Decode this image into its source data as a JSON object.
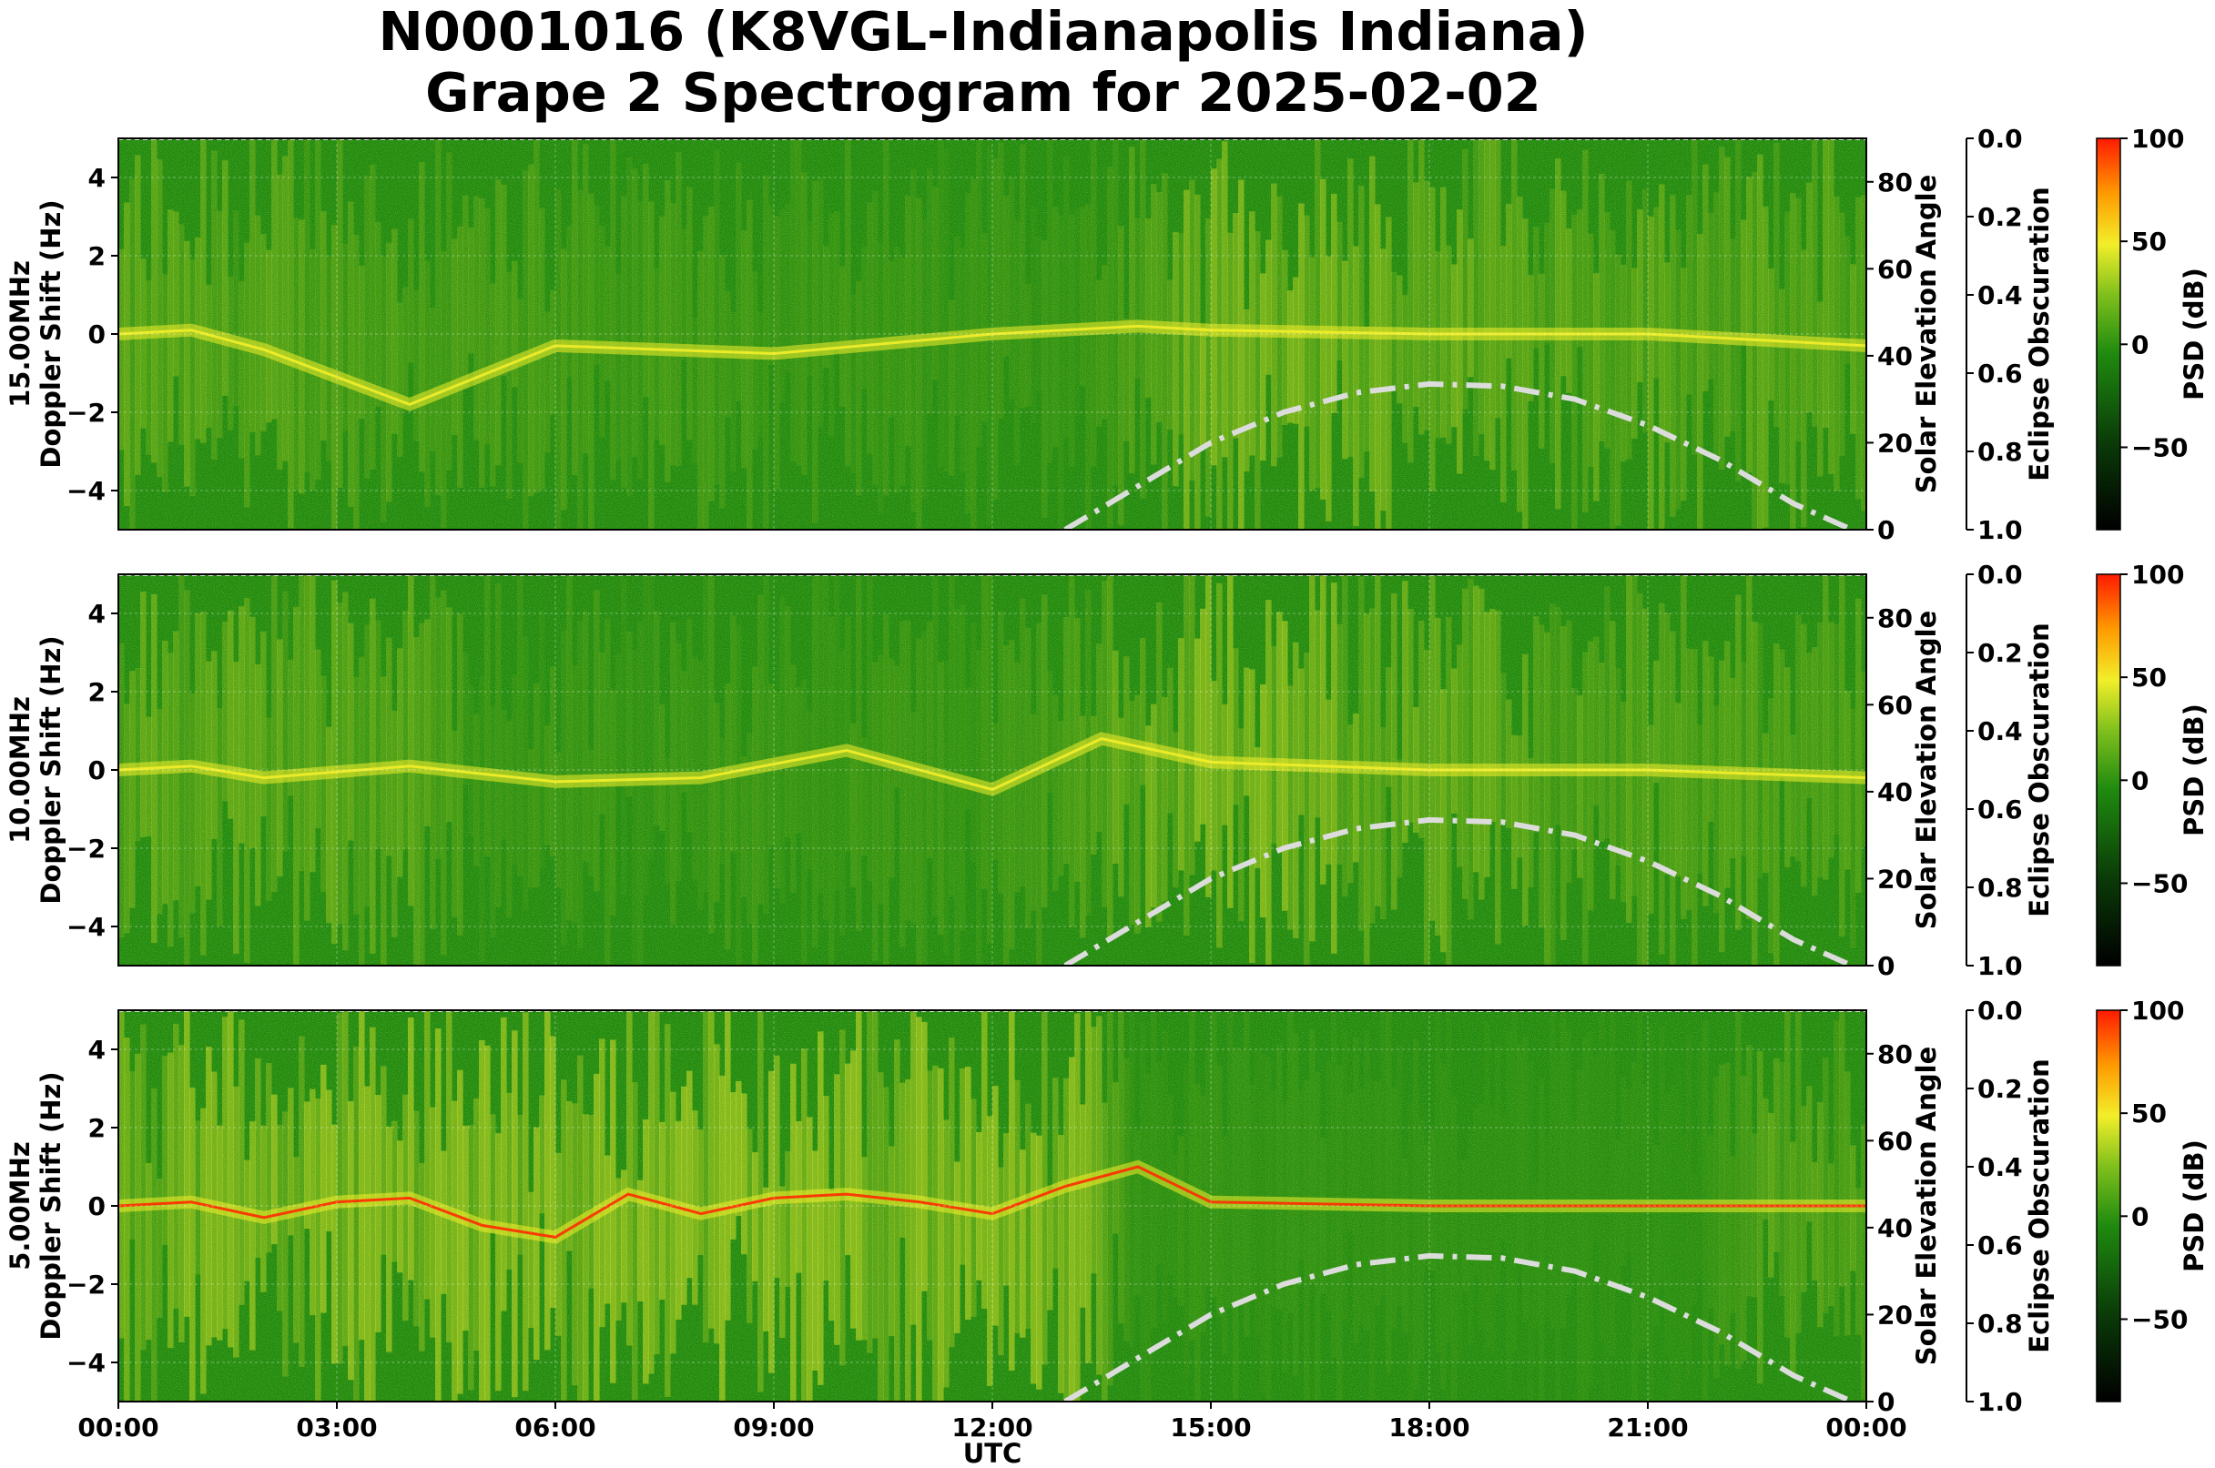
{
  "title_line1": "N0001016 (K8VGL-Indianapolis Indiana)",
  "title_line2": "Grape 2 Spectrogram for 2025-02-02",
  "colors": {
    "background_green": "#1f8a0f",
    "band_yellow": "#f2ee2a",
    "trace_red": "#ff2a00",
    "solar_curve": "#dcdcdc"
  },
  "chart_data": [
    {
      "type": "heatmap",
      "panel": "15.00MHz",
      "ylabel_freq": "15.00MHz",
      "ylabel": "Doppler Shift (Hz)",
      "y2label": "Solar Elevation Angle",
      "y3label": "Eclipse Obscuration",
      "cbar_label": "PSD (dB)",
      "ylim": [
        -5,
        5
      ],
      "y2lim": [
        0,
        90
      ],
      "y3lim": [
        1.0,
        0.0
      ],
      "cbar_lim": [
        -90,
        100
      ],
      "yticks": [
        "−4",
        "−2",
        "0",
        "2",
        "4"
      ],
      "y2ticks": [
        "0",
        "20",
        "40",
        "60",
        "80"
      ],
      "y3ticks": [
        "0.0",
        "0.2",
        "0.4",
        "0.6",
        "0.8",
        "1.0"
      ],
      "cbar_ticks": [
        "100",
        "50",
        "0",
        "−50"
      ],
      "solar_elevation": {
        "x": [
          13.0,
          14,
          15,
          16,
          17,
          18,
          19,
          20,
          21,
          22,
          23,
          23.8
        ],
        "y": [
          0,
          10,
          20,
          27,
          31.5,
          33.5,
          33,
          30,
          24,
          16,
          6,
          0
        ]
      },
      "doppler_trace": {
        "x": [
          0,
          1,
          2,
          4,
          6,
          9,
          12,
          14,
          15,
          18,
          21,
          24
        ],
        "y": [
          0,
          0.1,
          -0.4,
          -1.8,
          -0.3,
          -0.5,
          0,
          0.2,
          0.1,
          0,
          0,
          -0.3
        ]
      }
    },
    {
      "type": "heatmap",
      "panel": "10.00MHz",
      "ylabel_freq": "10.00MHz",
      "ylabel": "Doppler Shift (Hz)",
      "y2label": "Solar Elevation Angle",
      "y3label": "Eclipse Obscuration",
      "cbar_label": "PSD (dB)",
      "ylim": [
        -5,
        5
      ],
      "y2lim": [
        0,
        90
      ],
      "y3lim": [
        1.0,
        0.0
      ],
      "cbar_lim": [
        -90,
        100
      ],
      "yticks": [
        "−4",
        "−2",
        "0",
        "2",
        "4"
      ],
      "y2ticks": [
        "0",
        "20",
        "40",
        "60",
        "80"
      ],
      "y3ticks": [
        "0.0",
        "0.2",
        "0.4",
        "0.6",
        "0.8",
        "1.0"
      ],
      "cbar_ticks": [
        "100",
        "50",
        "0",
        "−50"
      ],
      "solar_elevation": {
        "x": [
          13.0,
          14,
          15,
          16,
          17,
          18,
          19,
          20,
          21,
          22,
          23,
          23.8
        ],
        "y": [
          0,
          10,
          20,
          27,
          31.5,
          33.5,
          33,
          30,
          24,
          16,
          6,
          0
        ]
      },
      "doppler_trace": {
        "x": [
          0,
          1,
          2,
          4,
          6,
          8,
          10,
          12,
          13.5,
          15,
          18,
          21,
          24
        ],
        "y": [
          0,
          0.1,
          -0.2,
          0.1,
          -0.3,
          -0.2,
          0.5,
          -0.5,
          0.8,
          0.2,
          0,
          0,
          -0.2
        ]
      }
    },
    {
      "type": "heatmap",
      "panel": "5.00MHz",
      "ylabel_freq": "5.00MHz",
      "ylabel": "Doppler Shift (Hz)",
      "y2label": "Solar Elevation Angle",
      "y3label": "Eclipse Obscuration",
      "cbar_label": "PSD (dB)",
      "ylim": [
        -5,
        5
      ],
      "y2lim": [
        0,
        90
      ],
      "y3lim": [
        1.0,
        0.0
      ],
      "cbar_lim": [
        -90,
        100
      ],
      "yticks": [
        "−4",
        "−2",
        "0",
        "2",
        "4"
      ],
      "y2ticks": [
        "0",
        "20",
        "40",
        "60",
        "80"
      ],
      "y3ticks": [
        "0.0",
        "0.2",
        "0.4",
        "0.6",
        "0.8",
        "1.0"
      ],
      "cbar_ticks": [
        "100",
        "50",
        "0",
        "−50"
      ],
      "solar_elevation": {
        "x": [
          13.0,
          14,
          15,
          16,
          17,
          18,
          19,
          20,
          21,
          22,
          23,
          23.8
        ],
        "y": [
          0,
          10,
          20,
          27,
          31.5,
          33.5,
          33,
          30,
          24,
          16,
          6,
          0
        ]
      },
      "doppler_trace": {
        "x": [
          0,
          1,
          2,
          3,
          4,
          5,
          6,
          7,
          8,
          9,
          10,
          11,
          12,
          13,
          14,
          15,
          18,
          21,
          24
        ],
        "y": [
          0,
          0.1,
          -0.3,
          0.1,
          0.2,
          -0.5,
          -0.8,
          0.3,
          -0.2,
          0.2,
          0.3,
          0.1,
          -0.2,
          0.5,
          1.0,
          0.1,
          0,
          0,
          0
        ]
      }
    }
  ],
  "xaxis": {
    "label": "UTC",
    "ticks": [
      "00:00",
      "03:00",
      "06:00",
      "09:00",
      "12:00",
      "15:00",
      "18:00",
      "21:00",
      "00:00"
    ],
    "xlim": [
      0,
      24
    ]
  }
}
